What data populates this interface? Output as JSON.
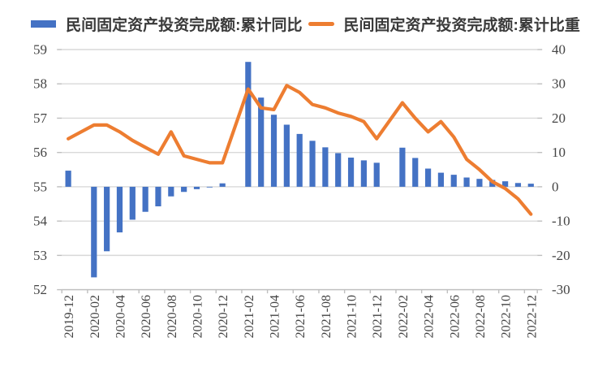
{
  "legend": [
    {
      "label": "民间固定资产投资完成额:累计同比",
      "swatch": "bar",
      "color": "#4472C4"
    },
    {
      "label": "民间固定资产投资完成额:累计比重",
      "swatch": "line",
      "color": "#ED7D31"
    }
  ],
  "chart_data": {
    "type": "bar+line combo, dual axis",
    "categories": [
      "2019-12",
      "2020-02",
      "2020-03",
      "2020-04",
      "2020-05",
      "2020-06",
      "2020-07",
      "2020-08",
      "2020-09",
      "2020-10",
      "2020-11",
      "2020-12",
      "2021-02",
      "2021-03",
      "2021-04",
      "2021-05",
      "2021-06",
      "2021-07",
      "2021-08",
      "2021-09",
      "2021-10",
      "2021-11",
      "2021-12",
      "2022-02",
      "2022-03",
      "2022-04",
      "2022-05",
      "2022-06",
      "2022-07",
      "2022-08",
      "2022-09",
      "2022-10",
      "2022-11",
      "2022-12"
    ],
    "series": [
      {
        "name": "民间固定资产投资完成额:累计同比",
        "type": "bar",
        "axis": "right",
        "color": "#4472C4",
        "values": [
          4.7,
          -26.4,
          -18.8,
          -13.3,
          -9.6,
          -7.3,
          -5.7,
          -2.8,
          -1.5,
          -0.7,
          -0.2,
          1.0,
          36.4,
          26.0,
          21.0,
          18.1,
          15.4,
          13.4,
          11.5,
          9.8,
          8.5,
          7.7,
          7.0,
          11.4,
          8.4,
          5.3,
          4.1,
          3.5,
          2.7,
          2.3,
          2.0,
          1.6,
          1.1,
          0.9
        ]
      },
      {
        "name": "民间固定资产投资完成额:累计比重",
        "type": "line",
        "axis": "left",
        "color": "#ED7D31",
        "values": [
          56.4,
          56.8,
          56.8,
          56.6,
          56.35,
          56.15,
          55.95,
          56.6,
          55.9,
          55.8,
          55.7,
          55.7,
          57.85,
          57.3,
          57.25,
          57.95,
          57.75,
          57.4,
          57.3,
          57.15,
          57.05,
          56.9,
          56.4,
          57.45,
          57.0,
          56.6,
          56.9,
          56.45,
          55.8,
          55.5,
          55.15,
          54.95,
          54.65,
          54.2
        ]
      }
    ],
    "x_tick_labels": [
      "2019-12",
      "2020-02",
      "2020-04",
      "2020-06",
      "2020-08",
      "2020-10",
      "2020-12",
      "2021-02",
      "2021-04",
      "2021-06",
      "2021-08",
      "2021-10",
      "2021-12",
      "2022-02",
      "2022-04",
      "2022-06",
      "2022-08",
      "2022-10",
      "2022-12"
    ],
    "left_axis": {
      "min": 52,
      "max": 59,
      "ticks": [
        "59",
        "58",
        "57",
        "56",
        "55",
        "54",
        "53",
        "52"
      ]
    },
    "right_axis": {
      "min": -30,
      "max": 40,
      "ticks": [
        "40",
        "30",
        "20",
        "10",
        "0",
        "-10",
        "-20",
        "-30"
      ]
    },
    "grid": "horizontal only",
    "legend_position": "top center",
    "gridline_color": "#D9D9D9",
    "axis_line_color": "#BFBFBF",
    "axis_text_color": "#444444"
  }
}
